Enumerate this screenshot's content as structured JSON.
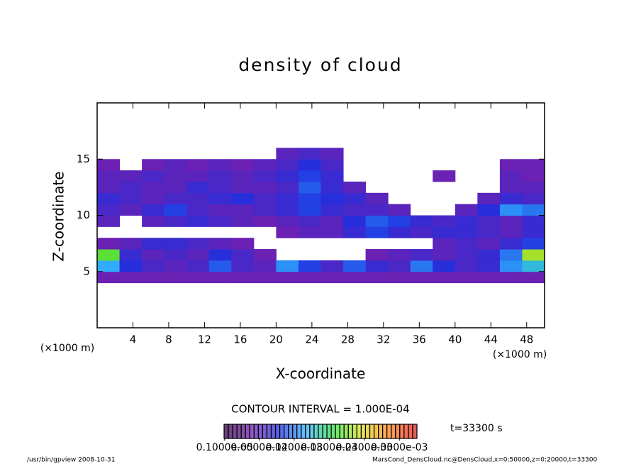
{
  "chart_data": {
    "type": "contour",
    "title": "density of cloud",
    "x_label": "X-coordinate",
    "y_label": "Z-coordinate",
    "x_unit_left": "(×1000 m)",
    "x_unit_right": "(×1000 m)",
    "xlim": [
      0,
      50
    ],
    "xticks": [
      4,
      8,
      12,
      16,
      20,
      24,
      28,
      32,
      36,
      40,
      44,
      48
    ],
    "ylim": [
      0,
      20
    ],
    "yticks": [
      5,
      10,
      15
    ],
    "xbins": [
      0,
      2.5,
      5,
      7.5,
      10,
      12.5,
      15,
      17.5,
      20,
      22.5,
      25,
      27.5,
      30,
      32.5,
      35,
      37.5,
      40,
      42.5,
      45,
      47.5,
      50
    ],
    "ybins": [
      4,
      5,
      6,
      7,
      8,
      9,
      10,
      11,
      12,
      13,
      14,
      15,
      16
    ],
    "values": [
      [
        5e-05,
        5e-05,
        5e-05,
        5e-05,
        5e-05,
        5e-05,
        5e-05,
        5e-05,
        5e-05,
        5e-05,
        5e-05,
        5e-05,
        5e-05,
        5e-05,
        5e-05,
        5e-05,
        5e-05,
        5e-05,
        5e-05,
        5e-05
      ],
      [
        0.00014,
        9e-05,
        7e-05,
        6e-05,
        7e-05,
        0.00011,
        7e-05,
        6e-05,
        0.00013,
        0.0001,
        7e-05,
        0.00011,
        8e-05,
        7e-05,
        0.00012,
        9e-05,
        7e-05,
        8e-05,
        0.00013,
        0.00015
      ],
      [
        0.0002,
        8e-05,
        6e-05,
        7e-05,
        6e-05,
        9e-05,
        7e-05,
        5e-05,
        null,
        null,
        null,
        null,
        5e-05,
        6e-05,
        7e-05,
        6e-05,
        7e-05,
        8e-05,
        0.00012,
        0.00022
      ],
      [
        5e-05,
        6e-05,
        8e-05,
        8e-05,
        7e-05,
        6e-05,
        5e-05,
        null,
        null,
        null,
        null,
        null,
        null,
        null,
        null,
        6e-05,
        7e-05,
        6e-05,
        8e-05,
        0.0001
      ],
      [
        null,
        null,
        null,
        null,
        null,
        null,
        null,
        null,
        5e-05,
        6e-05,
        6e-05,
        8e-05,
        0.0001,
        8e-05,
        7e-05,
        8e-05,
        8e-05,
        7e-05,
        6e-05,
        8e-05
      ],
      [
        6e-05,
        null,
        6e-05,
        7e-05,
        8e-05,
        7e-05,
        6e-05,
        5e-05,
        6e-05,
        7e-05,
        6e-05,
        9e-05,
        0.00011,
        0.0001,
        8e-05,
        7e-05,
        8e-05,
        7e-05,
        6e-05,
        8e-05
      ],
      [
        7e-05,
        6e-05,
        8e-05,
        0.0001,
        7e-05,
        6e-05,
        6e-05,
        7e-05,
        8e-05,
        0.0001,
        8e-05,
        7e-05,
        7e-05,
        6e-05,
        null,
        null,
        6e-05,
        9e-05,
        0.00013,
        0.00012
      ],
      [
        8e-05,
        7e-05,
        6e-05,
        7e-05,
        7e-05,
        8e-05,
        9e-05,
        7e-05,
        8e-05,
        0.0001,
        9e-05,
        8e-05,
        6e-05,
        null,
        null,
        null,
        null,
        6e-05,
        8e-05,
        7e-05
      ],
      [
        6e-05,
        7e-05,
        6e-05,
        6e-05,
        8e-05,
        7e-05,
        6e-05,
        6e-05,
        7e-05,
        0.00011,
        8e-05,
        6e-05,
        null,
        null,
        null,
        null,
        null,
        null,
        6e-05,
        6e-05
      ],
      [
        6e-05,
        6e-05,
        7e-05,
        6e-05,
        6e-05,
        7e-05,
        6e-05,
        7e-05,
        8e-05,
        0.0001,
        8e-05,
        null,
        null,
        null,
        null,
        5e-05,
        null,
        null,
        6e-05,
        5e-05
      ],
      [
        5e-05,
        null,
        5e-05,
        6e-05,
        5e-05,
        6e-05,
        5e-05,
        6e-05,
        7e-05,
        9e-05,
        7e-05,
        null,
        null,
        null,
        null,
        null,
        null,
        null,
        5e-05,
        5e-05
      ],
      [
        null,
        null,
        null,
        null,
        null,
        null,
        null,
        null,
        6e-05,
        7e-05,
        6e-05,
        null,
        null,
        null,
        null,
        null,
        null,
        null,
        null,
        null
      ]
    ],
    "colormap": [
      "#300040",
      "#7020b0",
      "#2030e0",
      "#30b0ff",
      "#30e040",
      "#e0e020",
      "#ff8020",
      "#e02020"
    ],
    "clim": [
      0,
      0.00033
    ],
    "contour_interval": "CONTOUR INTERVAL = 1.000E-04",
    "colorbar_ticks": [
      {
        "value": 1e-06,
        "label": "0.1000e-05"
      },
      {
        "value": 6e-05,
        "label": "0.6000e-04"
      },
      {
        "value": 0.00012,
        "label": "0.1200e-03"
      },
      {
        "value": 0.00018,
        "label": "0.1800e-03"
      },
      {
        "value": 0.00024,
        "label": "0.2400e-03"
      },
      {
        "value": 0.0003,
        "label": "0.3000e-03"
      }
    ],
    "time_label": "t=33300 s",
    "footer_left": "/usr/bin/gpview   2008-10-31",
    "footer_right": "MarsCond_DensCloud.nc@DensCloud,x=0:50000,z=0:20000,t=33300"
  }
}
